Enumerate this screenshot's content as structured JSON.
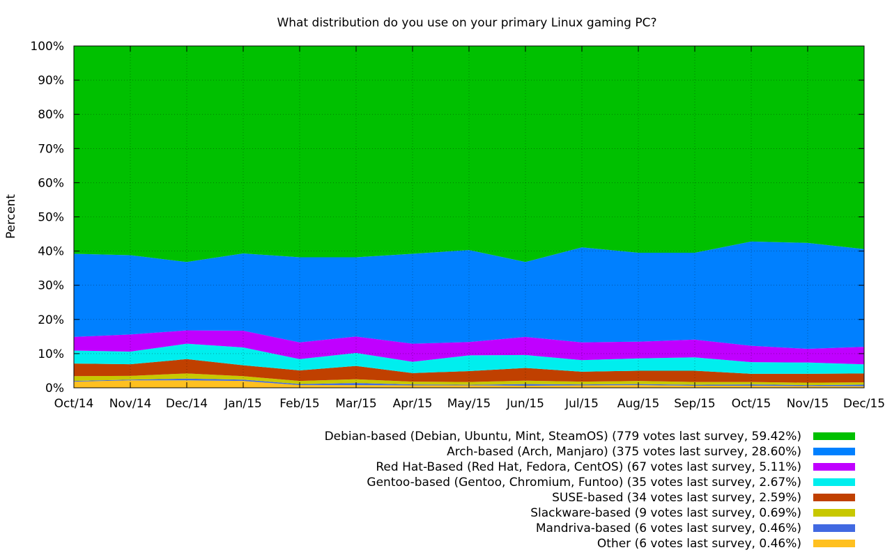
{
  "chart_data": {
    "type": "area",
    "stacked": true,
    "normalized": true,
    "title": "What distribution do you use on your primary Linux gaming PC?",
    "xlabel": "",
    "ylabel": "Percent",
    "ylim": [
      0,
      100
    ],
    "y_ticks": [
      0,
      10,
      20,
      30,
      40,
      50,
      60,
      70,
      80,
      90,
      100
    ],
    "y_tick_labels": [
      "0%",
      "10%",
      "20%",
      "30%",
      "40%",
      "50%",
      "60%",
      "70%",
      "80%",
      "90%",
      "100%"
    ],
    "categories": [
      "Oct/14",
      "Nov/14",
      "Dec/14",
      "Jan/15",
      "Feb/15",
      "Mar/15",
      "Apr/15",
      "May/15",
      "Jun/15",
      "Jul/15",
      "Aug/15",
      "Sep/15",
      "Oct/15",
      "Nov/15",
      "Dec/15"
    ],
    "grid": true,
    "legend_position": "bottom-right",
    "series": [
      {
        "name": "Other (6 votes last survey, 0.46%)",
        "color": "#ffc020",
        "values": [
          1.8,
          2.2,
          2.2,
          2.0,
          0.8,
          0.8,
          0.7,
          0.7,
          0.6,
          0.7,
          0.8,
          0.6,
          0.6,
          0.5,
          0.46
        ]
      },
      {
        "name": "Mandriva-based (6 votes last survey, 0.46%)",
        "color": "#4169e1",
        "values": [
          0.2,
          0.2,
          0.5,
          0.4,
          0.3,
          0.6,
          0.3,
          0.2,
          0.5,
          0.3,
          0.3,
          0.3,
          0.4,
          0.3,
          0.46
        ]
      },
      {
        "name": "Slackware-based (9 votes last survey, 0.69%)",
        "color": "#c8c800",
        "values": [
          1.4,
          1.1,
          1.5,
          1.0,
          0.9,
          1.1,
          0.8,
          0.8,
          1.0,
          0.8,
          0.9,
          0.8,
          0.7,
          0.7,
          0.69
        ]
      },
      {
        "name": "SUSE-based (34 votes last survey, 2.59%)",
        "color": "#c04000",
        "values": [
          3.7,
          3.4,
          4.2,
          3.2,
          3.1,
          3.9,
          2.5,
          3.2,
          3.7,
          2.9,
          3.0,
          3.3,
          2.4,
          2.6,
          2.59
        ]
      },
      {
        "name": "Gentoo-based (Gentoo, Chromium, Funtoo) (35 votes last survey, 2.67%)",
        "color": "#00eeee",
        "values": [
          3.8,
          3.7,
          4.5,
          5.2,
          3.3,
          3.8,
          3.3,
          4.6,
          3.8,
          3.4,
          3.6,
          3.9,
          3.4,
          3.3,
          2.67
        ]
      },
      {
        "name": "Red Hat-Based (Red Hat, Fedora, CentOS) (67 votes last survey, 5.11%)",
        "color": "#c000ff",
        "values": [
          4.0,
          5.0,
          3.9,
          4.9,
          4.9,
          4.8,
          5.3,
          3.9,
          5.3,
          5.2,
          4.9,
          5.2,
          4.8,
          4.0,
          5.11
        ]
      },
      {
        "name": "Arch-based (Arch, Manjaro) (375 votes last survey, 28.60%)",
        "color": "#0080ff",
        "values": [
          24.3,
          23.2,
          20.0,
          22.6,
          24.9,
          23.2,
          26.3,
          26.9,
          21.9,
          27.8,
          26.0,
          25.4,
          30.5,
          31.0,
          28.6
        ]
      },
      {
        "name": "Debian-based (Debian, Ubuntu, Mint, SteamOS) (779 votes last survey, 59.42%)",
        "color": "#00c000",
        "values": [
          60.8,
          61.2,
          63.2,
          60.7,
          61.8,
          61.8,
          60.8,
          59.7,
          63.2,
          58.9,
          60.5,
          60.5,
          57.2,
          57.6,
          59.42
        ]
      }
    ],
    "legend_order": [
      7,
      6,
      5,
      4,
      3,
      2,
      1,
      0
    ]
  }
}
